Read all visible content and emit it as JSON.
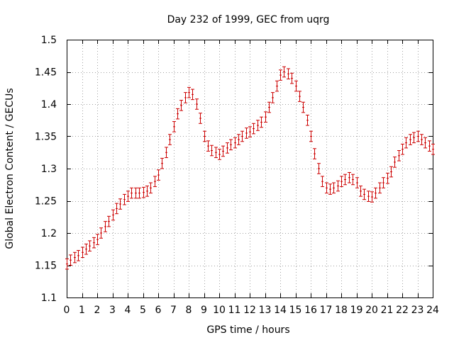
{
  "chart_data": {
    "type": "scatter",
    "title": "Day 232 of 1999, GEC from uqrg",
    "xlabel": "GPS time / hours",
    "ylabel": "Global Electron Content / GECUs",
    "xlim": [
      0,
      24
    ],
    "ylim": [
      1.1,
      1.5
    ],
    "xticks": [
      0,
      1,
      2,
      3,
      4,
      5,
      6,
      7,
      8,
      9,
      10,
      11,
      12,
      13,
      14,
      15,
      16,
      17,
      18,
      19,
      20,
      21,
      22,
      23,
      24
    ],
    "yticks": [
      1.1,
      1.15,
      1.2,
      1.25,
      1.3,
      1.35,
      1.4,
      1.45,
      1.5
    ],
    "ytick_labels": [
      "1.1",
      "1.15",
      "1.2",
      "1.25",
      "1.3",
      "1.35",
      "1.4",
      "1.45",
      "1.5"
    ],
    "grid": true,
    "error_bar": 0.008,
    "series": [
      {
        "name": "GEC",
        "color": "#cc0000",
        "x": [
          0,
          0.25,
          0.5,
          0.75,
          1,
          1.25,
          1.5,
          1.75,
          2,
          2.25,
          2.5,
          2.75,
          3,
          3.25,
          3.5,
          3.75,
          4,
          4.25,
          4.5,
          4.75,
          5,
          5.25,
          5.5,
          5.75,
          6,
          6.25,
          6.5,
          6.75,
          7,
          7.25,
          7.5,
          7.75,
          8,
          8.25,
          8.5,
          8.75,
          9,
          9.25,
          9.5,
          9.75,
          10,
          10.25,
          10.5,
          10.75,
          11,
          11.25,
          11.5,
          11.75,
          12,
          12.25,
          12.5,
          12.75,
          13,
          13.25,
          13.5,
          13.75,
          14,
          14.25,
          14.5,
          14.75,
          15,
          15.25,
          15.5,
          15.75,
          16,
          16.25,
          16.5,
          16.75,
          17,
          17.25,
          17.5,
          17.75,
          18,
          18.25,
          18.5,
          18.75,
          19,
          19.25,
          19.5,
          19.75,
          20,
          20.25,
          20.5,
          20.75,
          21,
          21.25,
          21.5,
          21.75,
          22,
          22.25,
          22.5,
          22.75,
          23,
          23.25,
          23.5,
          23.75,
          24
        ],
        "y": [
          1.152,
          1.158,
          1.162,
          1.165,
          1.17,
          1.175,
          1.18,
          1.185,
          1.19,
          1.2,
          1.21,
          1.218,
          1.228,
          1.238,
          1.245,
          1.252,
          1.257,
          1.262,
          1.262,
          1.262,
          1.263,
          1.265,
          1.27,
          1.28,
          1.29,
          1.308,
          1.325,
          1.345,
          1.365,
          1.385,
          1.398,
          1.41,
          1.418,
          1.415,
          1.4,
          1.378,
          1.35,
          1.335,
          1.328,
          1.325,
          1.322,
          1.327,
          1.332,
          1.337,
          1.34,
          1.345,
          1.35,
          1.355,
          1.357,
          1.362,
          1.367,
          1.372,
          1.38,
          1.395,
          1.41,
          1.428,
          1.445,
          1.45,
          1.447,
          1.44,
          1.428,
          1.412,
          1.395,
          1.375,
          1.35,
          1.323,
          1.3,
          1.28,
          1.27,
          1.268,
          1.27,
          1.273,
          1.28,
          1.283,
          1.286,
          1.283,
          1.278,
          1.265,
          1.26,
          1.257,
          1.256,
          1.262,
          1.27,
          1.278,
          1.285,
          1.295,
          1.31,
          1.32,
          1.33,
          1.34,
          1.345,
          1.348,
          1.35,
          1.345,
          1.34,
          1.335,
          1.33
        ]
      }
    ]
  }
}
